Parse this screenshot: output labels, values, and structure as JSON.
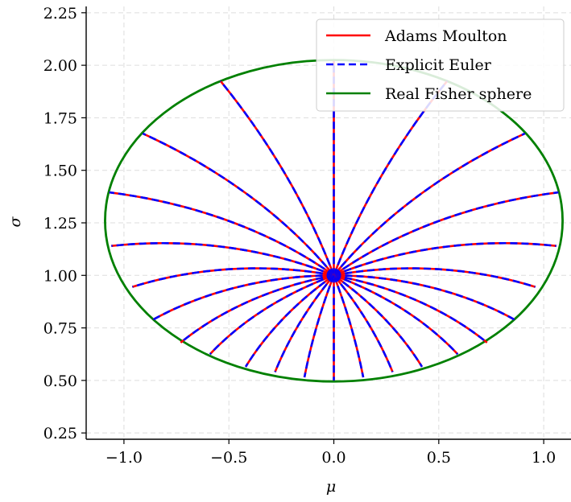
{
  "chart_data": {
    "type": "line",
    "title": "",
    "xlabel": "μ",
    "ylabel": "σ",
    "xlim": [
      -1.18,
      1.13
    ],
    "ylim": [
      0.22,
      2.28
    ],
    "xticks": [
      -1.0,
      -0.5,
      0.0,
      0.5,
      1.0
    ],
    "xtick_labels": [
      "−1.0",
      "−0.5",
      "0.0",
      "0.5",
      "1.0"
    ],
    "yticks": [
      0.25,
      0.5,
      0.75,
      1.0,
      1.25,
      1.5,
      1.75,
      2.0,
      2.25
    ],
    "ytick_labels": [
      "0.25",
      "0.50",
      "0.75",
      "1.00",
      "1.25",
      "1.50",
      "1.75",
      "2.00",
      "2.25"
    ],
    "grid": true,
    "legend_position": "top-right",
    "center": [
      0.0,
      1.0
    ],
    "geodesic_count": 24,
    "geodesic_endpoints": [
      [
        0.0,
        0.5
      ],
      [
        0.14,
        0.515
      ],
      [
        0.28,
        0.54
      ],
      [
        0.42,
        0.565
      ],
      [
        0.59,
        0.625
      ],
      [
        0.73,
        0.68
      ],
      [
        0.86,
        0.79
      ],
      [
        0.96,
        0.945
      ],
      [
        1.06,
        1.14
      ],
      [
        1.07,
        1.395
      ],
      [
        0.91,
        1.675
      ],
      [
        0.54,
        1.925
      ],
      [
        0.0,
        2.02
      ],
      [
        -0.54,
        1.925
      ],
      [
        -0.91,
        1.675
      ],
      [
        -1.07,
        1.395
      ],
      [
        -1.06,
        1.14
      ],
      [
        -0.96,
        0.945
      ],
      [
        -0.86,
        0.79
      ],
      [
        -0.73,
        0.68
      ],
      [
        -0.59,
        0.625
      ],
      [
        -0.42,
        0.565
      ],
      [
        -0.28,
        0.54
      ],
      [
        -0.14,
        0.515
      ]
    ],
    "series": [
      {
        "name": "Adams Moulton",
        "color": "#ff0000",
        "style": "solid"
      },
      {
        "name": "Explicit Euler",
        "color": "#0000ff",
        "style": "dashed"
      },
      {
        "name": "Real Fisher sphere",
        "color": "#008000",
        "style": "solid"
      }
    ],
    "sphere": {
      "center": [
        0.0,
        1.26
      ],
      "radius_mu": 1.09,
      "radius_sigma": 0.765
    }
  }
}
